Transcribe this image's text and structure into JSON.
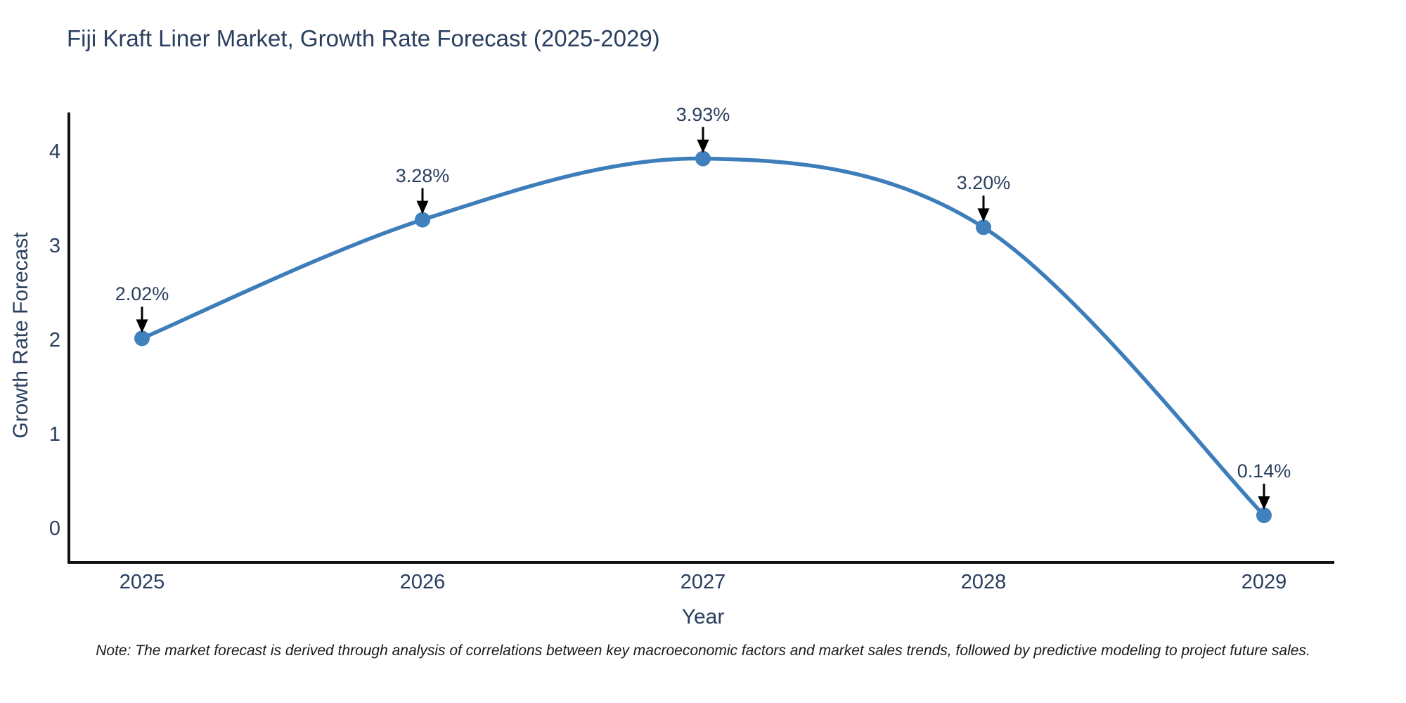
{
  "chart_data": {
    "type": "line",
    "title": "Fiji Kraft Liner Market, Growth Rate Forecast (2025-2029)",
    "xlabel": "Year",
    "ylabel": "Growth Rate Forecast",
    "categories": [
      "2025",
      "2026",
      "2027",
      "2028",
      "2029"
    ],
    "values": [
      2.02,
      3.28,
      3.93,
      3.2,
      0.14
    ],
    "point_labels": [
      "2.02%",
      "3.28%",
      "3.93%",
      "3.20%",
      "0.14%"
    ],
    "yticks": [
      0,
      1,
      2,
      3,
      4
    ],
    "ylim": [
      -0.36,
      4.42
    ],
    "line_shape": "spline",
    "grid": false,
    "legend": "none",
    "note": "Note: The market forecast is derived through analysis of correlations between key macroeconomic factors and market sales trends, followed by predictive modeling to project future sales.",
    "colors": {
      "line": "#3d7eba",
      "marker": "#3f80bd",
      "arrow": "#000000",
      "axis": "#111111",
      "title_text": "#2a3f5f",
      "tick_text": "#2a3f5f",
      "note_text": "#1a1a1a",
      "background": "#ffffff"
    }
  }
}
